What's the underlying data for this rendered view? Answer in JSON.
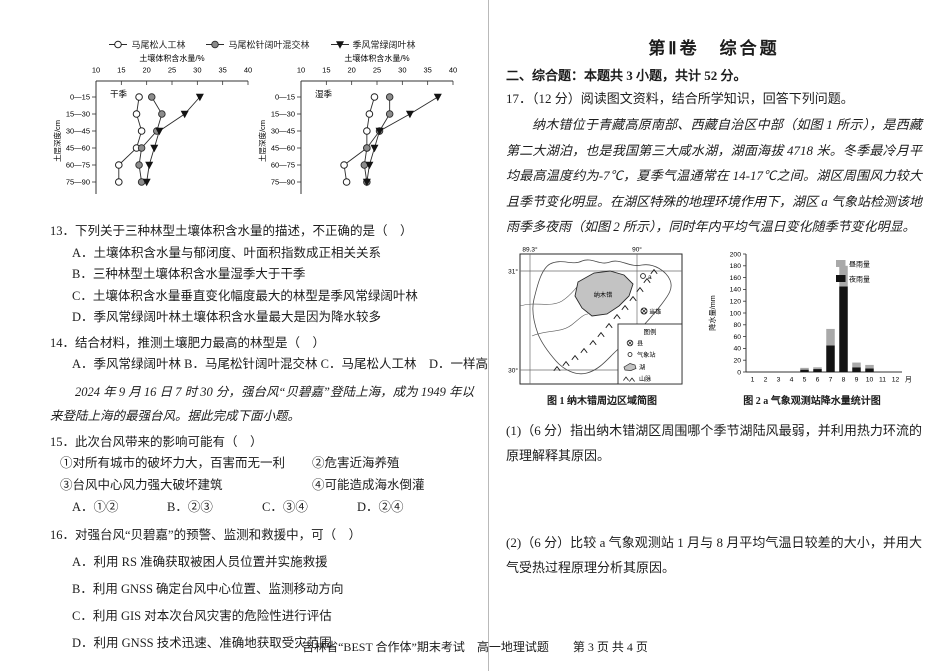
{
  "page": {
    "footer": "吉林省“BEST 合作体”期末考试　高一地理试题　　第 3 页 共 4 页"
  },
  "left": {
    "q13": {
      "stem": "13．下列关于三种林型土壤体积含水量的描述，不正确的是（　）",
      "options": [
        "A．土壤体积含水量与郁闭度、叶面积指数成正相关关系",
        "B．三种林型土壤体积含水量湿季大于干季",
        "C．土壤体积含水量垂直变化幅度最大的林型是季风常绿阔叶林",
        "D．季风常绿阔叶林土壤体积含水量最大是因为降水较多"
      ]
    },
    "q14": {
      "stem": "14．结合材料，推测土壤肥力最高的林型是（　）",
      "options_line": "A．季风常绿阔叶林 B．马尾松针阔叶混交林 C．马尾松人工林　D．一样高"
    },
    "passage": "2024 年 9 月 16 日 7 时 30 分，强台风“贝碧嘉”登陆上海，成为 1949 年以来登陆上海的最强台风。据此完成下面小题。",
    "q15": {
      "stem": "15．此次台风带来的影响可能有（　）",
      "items": [
        "①对所有城市的破坏力大，百害而无一利",
        "②危害近海养殖",
        "③台风中心风力强大破坏建筑",
        "④可能造成海水倒灌"
      ],
      "options": [
        "A．①②",
        "B．②③",
        "C．③④",
        "D．②④"
      ]
    },
    "q16": {
      "stem": "16．对强台风“贝碧嘉”的预警、监测和救援中，可（　）",
      "options": [
        "A．利用 RS 准确获取被困人员位置并实施救援",
        "B．利用 GNSS 确定台风中心位置、监测移动方向",
        "C．利用 GIS 对本次台风灾害的危险性进行评估",
        "D．利用 GNSS 技术迅速、准确地获取受灾范围"
      ]
    }
  },
  "right": {
    "part_title": "第Ⅱ卷　综合题",
    "section_header": "二、综合题：本题共 3 小题，共计 52 分。",
    "q17": {
      "header": "17．（12 分）阅读图文资料，结合所学知识，回答下列问题。",
      "passage": "纳木错位于青藏高原南部、西藏自治区中部（如图 1 所示），是西藏第二大湖泊，也是我国第三大咸水湖，湖面海拔 4718 米。冬季最冷月平均最高温度约为-7℃，夏季气温通常在 14-17℃之间。湖区周围风力较大且季节变化明显。在湖区特殊的地理环境作用下，湖区 a 气象站检测该地雨季多夜雨（如图 2 所示），同时年内平均气温日变化随季节变化明显。",
      "sub1": "(1)（6 分）指出纳木错湖区周围哪个季节湖陆风最弱，并利用热力环流的原理解释其原因。",
      "sub2": "(2)（6 分）比较 a 气象观测站 1 月与 8 月平均气温日较差的大小，并用大气受热过程原理分析其原因。"
    },
    "map": {
      "lon_labels": [
        "89.3°",
        "90°"
      ],
      "lat_labels": [
        "31°",
        "30°"
      ],
      "lake_label": "纳木错",
      "station_label": "a",
      "town_label": "当雄",
      "legend_title": "图例",
      "legend_items": [
        "县",
        "气象站",
        "湖",
        "山脉"
      ],
      "caption": "图 1 纳木错周边区域简图"
    }
  },
  "chart_data": [
    {
      "type": "line",
      "title": "干季",
      "xlabel": "土壤体积含水量/%",
      "ylabel": "土层深度/cm",
      "xlim": [
        10,
        40
      ],
      "xticks": [
        10,
        15,
        20,
        25,
        30,
        35,
        40
      ],
      "categories": [
        "0—15",
        "15—30",
        "30—45",
        "45—60",
        "60—75",
        "75—90"
      ],
      "series": [
        {
          "name": "马尾松人工林",
          "marker": "open-circle",
          "values": [
            18.5,
            18,
            19,
            18,
            14.5,
            14.5
          ]
        },
        {
          "name": "马尾松针阔叶混交林",
          "marker": "filled-circle",
          "values": [
            21,
            23,
            22,
            19,
            18.5,
            19
          ]
        },
        {
          "name": "季风常绿阔叶林",
          "marker": "filled-triangle",
          "values": [
            30.5,
            27.5,
            22.5,
            21.5,
            20.5,
            20
          ]
        }
      ]
    },
    {
      "type": "line",
      "title": "湿季",
      "xlabel": "土壤体积含水量/%",
      "ylabel": "土层深度/cm",
      "xlim": [
        10,
        40
      ],
      "xticks": [
        10,
        15,
        20,
        25,
        30,
        35,
        40
      ],
      "categories": [
        "0—15",
        "15—30",
        "30—45",
        "45—60",
        "60—75",
        "75—90"
      ],
      "series": [
        {
          "name": "马尾松人工林",
          "marker": "open-circle",
          "values": [
            24.5,
            23.5,
            23,
            23,
            18.5,
            19
          ]
        },
        {
          "name": "马尾松针阔叶混交林",
          "marker": "filled-circle",
          "values": [
            27.5,
            27.5,
            25.5,
            23,
            22.5,
            23
          ]
        },
        {
          "name": "季风常绿阔叶林",
          "marker": "filled-triangle",
          "values": [
            37,
            31.5,
            25.5,
            24.5,
            23.5,
            23
          ]
        }
      ]
    },
    {
      "type": "stacked-bar",
      "caption": "图 2 a 气象观测站降水量统计图",
      "ylabel": "降水量/mm",
      "ylim": [
        0,
        200
      ],
      "ytick_step": 20,
      "categories": [
        "1",
        "2",
        "3",
        "4",
        "5",
        "6",
        "7",
        "8",
        "9",
        "10",
        "11",
        "12"
      ],
      "x_suffix": "月",
      "series": [
        {
          "name": "夜雨量",
          "color": "#131313",
          "values": [
            0,
            0,
            0,
            0,
            4,
            5,
            45,
            145,
            8,
            6,
            0,
            0
          ]
        },
        {
          "name": "昼雨量",
          "color": "#a9a9a9",
          "values": [
            0,
            0,
            0,
            0,
            3,
            3,
            28,
            35,
            8,
            6,
            0,
            0
          ]
        }
      ]
    }
  ]
}
